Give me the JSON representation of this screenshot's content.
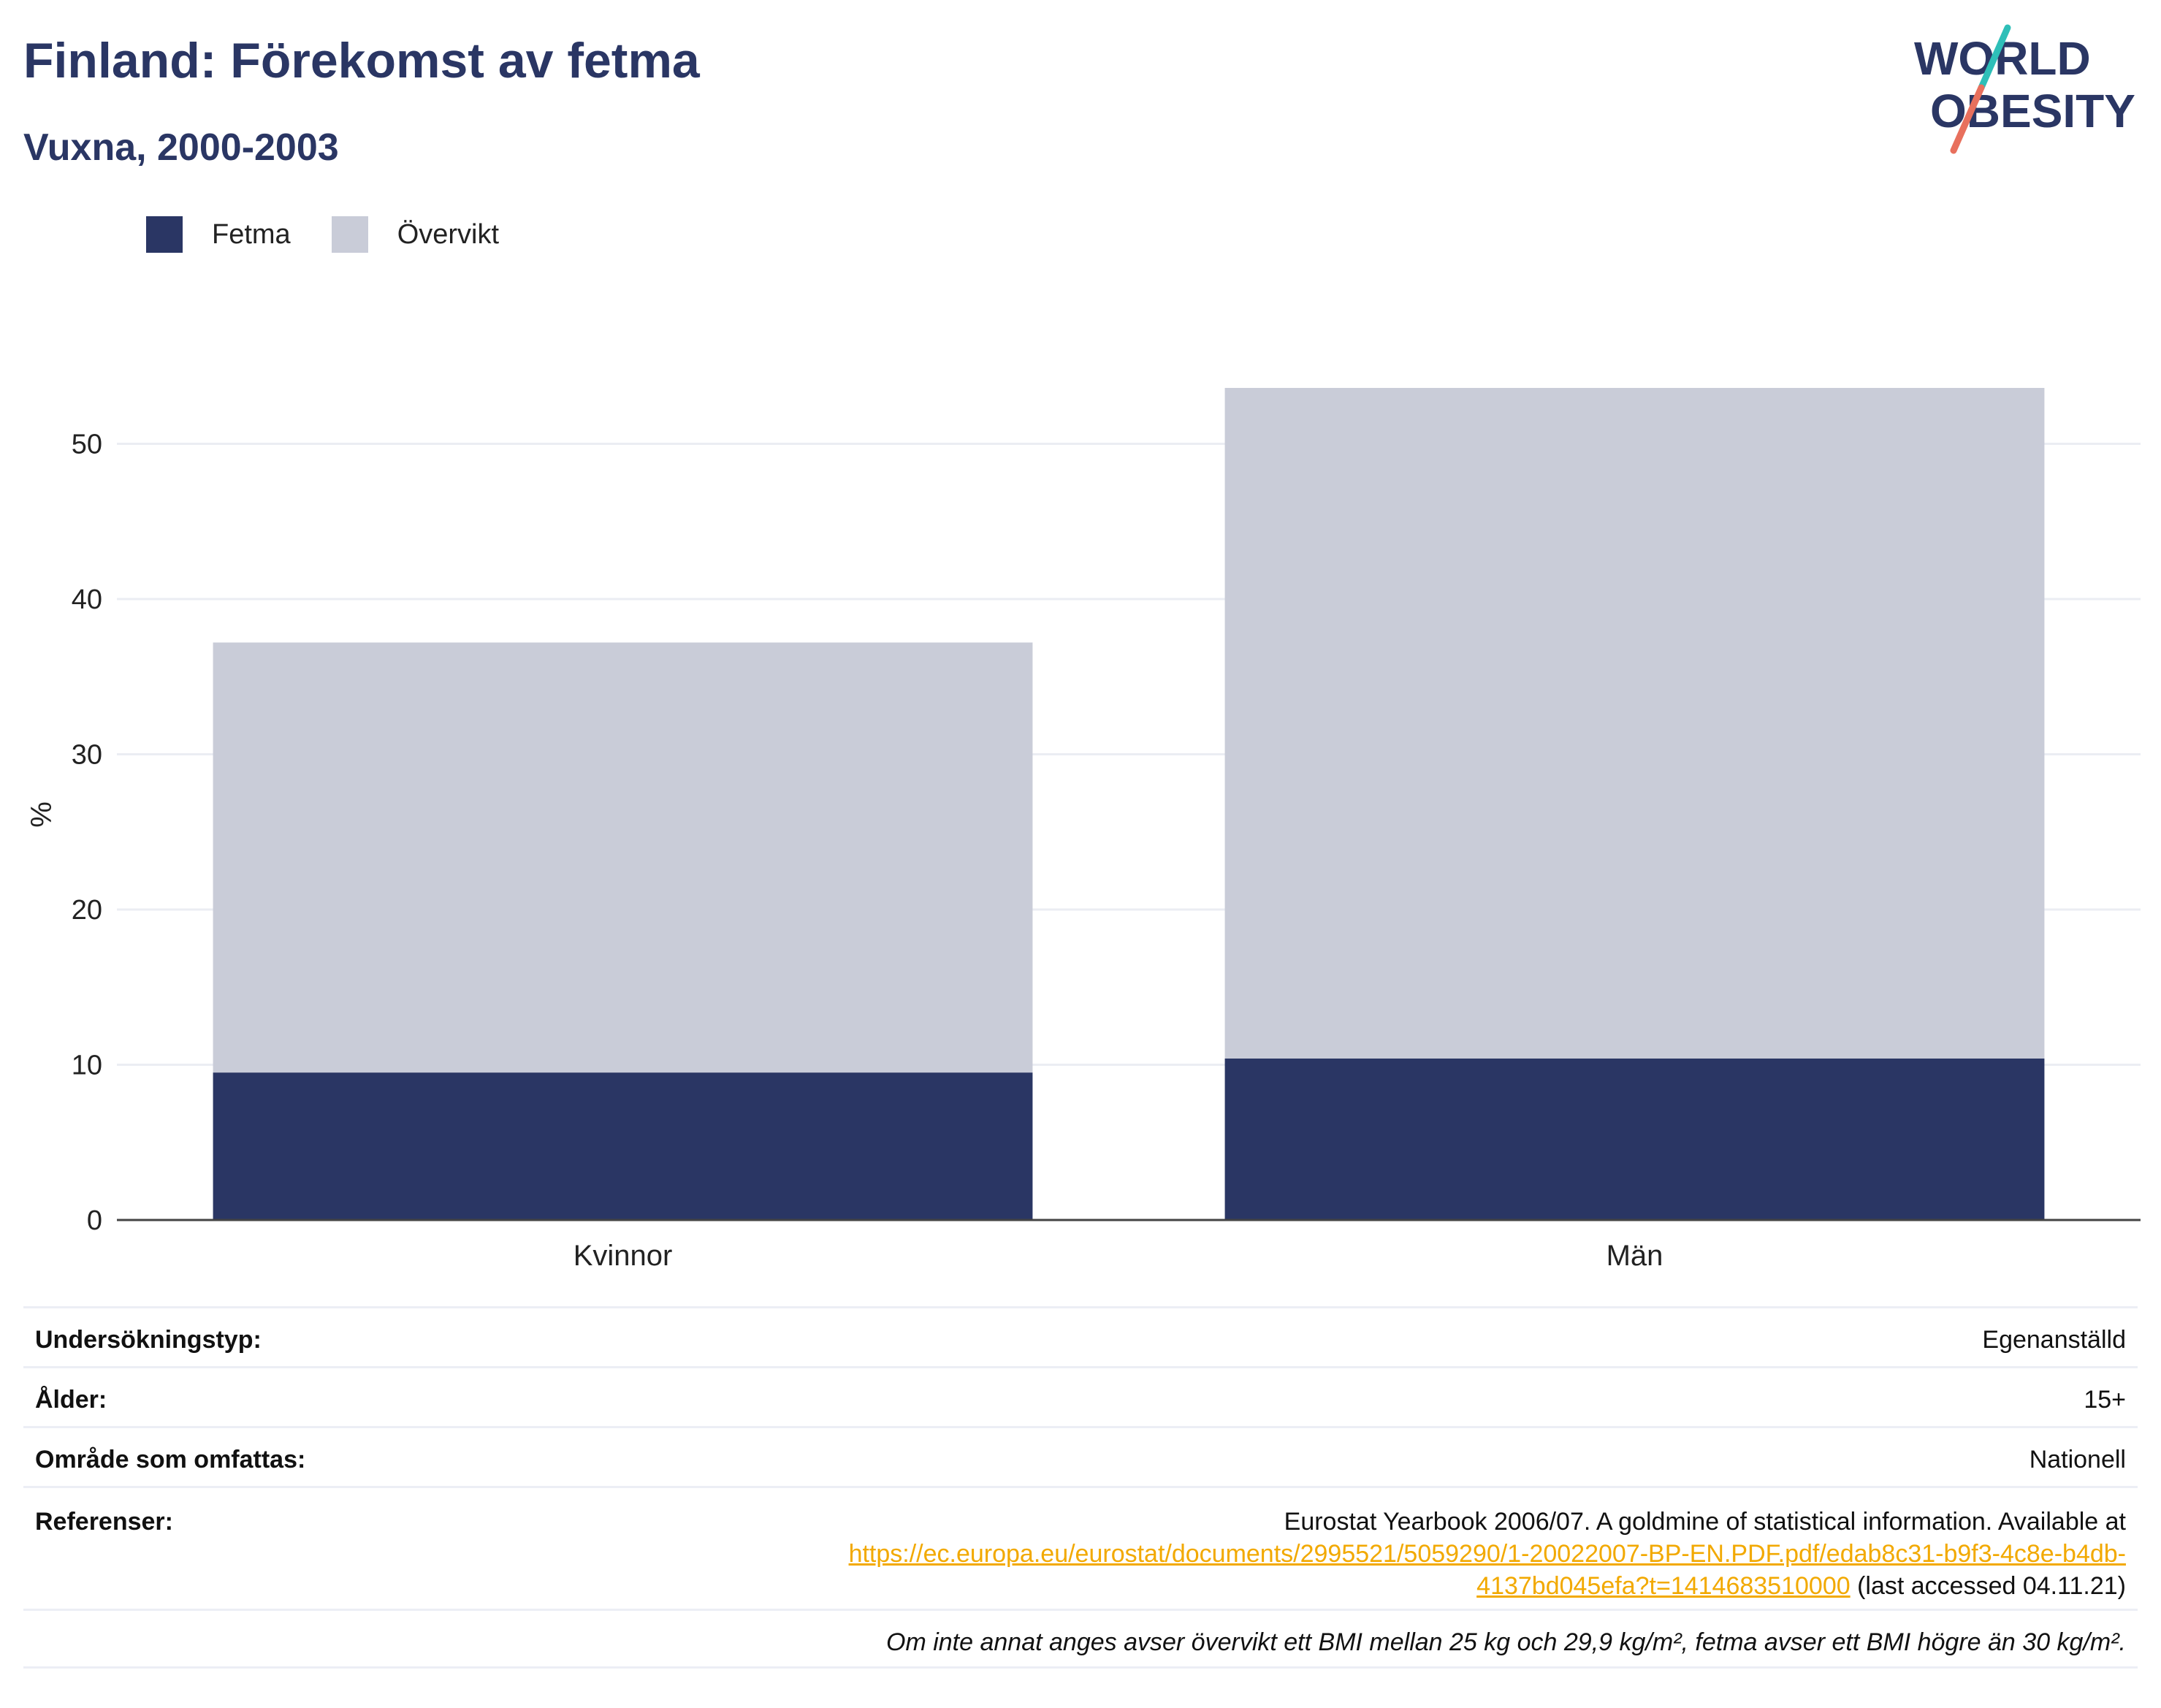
{
  "title": "Finland: Förekomst av fetma",
  "subtitle": "Vuxna, 2000-2003",
  "logo": {
    "line1": "WORLD",
    "line2": "OBESITY"
  },
  "colors": {
    "fetma": "#2a3664",
    "overvikt": "#c9ccd8",
    "text": "#2a3664",
    "link": "#f2a900"
  },
  "chart_data": {
    "type": "bar",
    "stacked": true,
    "categories": [
      "Kvinnor",
      "Män"
    ],
    "series": [
      {
        "name": "Fetma",
        "values": [
          9.5,
          10.4
        ]
      },
      {
        "name": "Övervikt",
        "values": [
          27.7,
          43.2
        ]
      }
    ],
    "ylabel": "%",
    "xlabel": "",
    "ylim": [
      0,
      56
    ],
    "yticks": [
      0,
      10,
      20,
      30,
      40,
      50
    ],
    "grid": true,
    "legend": "top-left"
  },
  "info": {
    "rows": [
      {
        "label": "Undersökningstyp:",
        "value": "Egenanställd"
      },
      {
        "label": "Ålder:",
        "value": "15+"
      },
      {
        "label": "Område som omfattas:",
        "value": "Nationell"
      }
    ],
    "references": {
      "label": "Referenser:",
      "text": "Eurostat Yearbook 2006/07. A goldmine of statistical information. Available at",
      "link_line1": "https://ec.europa.eu/eurostat/documents/2995521/5059290/1-20022007-BP-EN.PDF.pdf/edab8c31-b9f3-4c8e-b4db-",
      "link_line2": "4137bd045efa?t=1414683510000",
      "suffix": " (last accessed 04.11.21)"
    },
    "footnote": "Om inte annat anges avser övervikt ett BMI mellan 25 kg och 29,9 kg/m², fetma avser ett BMI högre än 30 kg/m²."
  }
}
